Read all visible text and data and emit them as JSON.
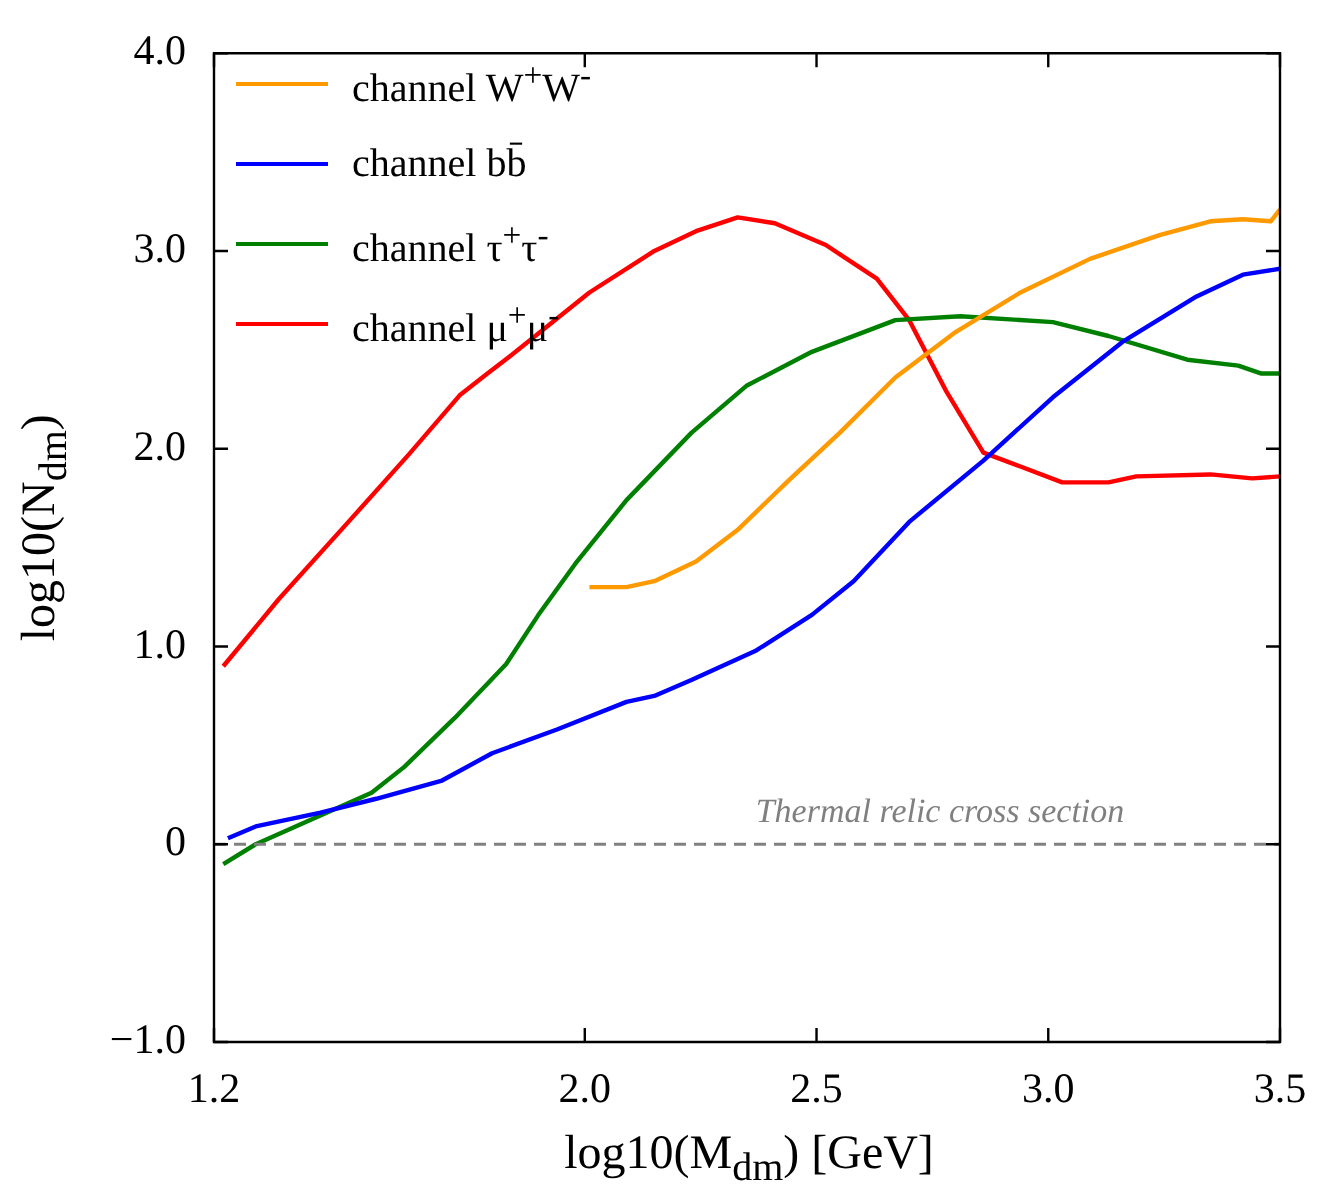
{
  "chart_data": {
    "type": "line",
    "xlabel": "log10(M$_{dm}$) [GeV]",
    "ylabel": "log10(N$_{dm}$)",
    "xlim": [
      1.2,
      3.5
    ],
    "xticks": [
      1.2,
      {
        "value": 2,
        "label": "2.0"
      },
      2.5,
      {
        "value": 3,
        "label": "3.0"
      },
      3.5
    ],
    "ylim": [
      -1,
      4
    ],
    "yticks": [
      {
        "value": -1,
        "label": "−1.0"
      },
      0,
      {
        "value": 1,
        "label": "1.0"
      },
      {
        "value": 2,
        "label": "2.0"
      },
      {
        "value": 3,
        "label": "3.0"
      },
      {
        "value": 4,
        "label": "4.0"
      }
    ],
    "legend": "top left",
    "marker": "none",
    "line_style": "solid",
    "ref_lines": [
      {
        "axis": "y",
        "value": 0,
        "label": "Thermal relic cross section",
        "color": "#808080",
        "line_style": "dashed"
      }
    ],
    "series": [
      {
        "name": "channel W$^{+}$W$^{-}$",
        "color": "#ff9900",
        "x": [
          2.01,
          2.09,
          2.15,
          2.24,
          2.33,
          2.44,
          2.55,
          2.67,
          2.8,
          2.94,
          3.09,
          3.24,
          3.35,
          3.42,
          3.48,
          3.5
        ],
        "values": [
          1.3,
          1.3,
          1.33,
          1.43,
          1.59,
          1.84,
          2.08,
          2.36,
          2.59,
          2.79,
          2.96,
          3.08,
          3.15,
          3.16,
          3.15,
          3.21
        ]
      },
      {
        "name": "channel bb̄",
        "color": "#0000ff",
        "x": [
          1.23,
          1.29,
          1.43,
          1.55,
          1.69,
          1.8,
          1.94,
          2.09,
          2.15,
          2.23,
          2.37,
          2.49,
          2.58,
          2.7,
          2.86,
          3.01,
          3.16,
          3.32,
          3.42,
          3.5
        ],
        "values": [
          0.03,
          0.09,
          0.16,
          0.23,
          0.32,
          0.46,
          0.58,
          0.72,
          0.75,
          0.83,
          0.98,
          1.16,
          1.33,
          1.63,
          1.94,
          2.26,
          2.54,
          2.77,
          2.88,
          2.91
        ]
      },
      {
        "name": "channel τ$^{+}$τ$^{-}$",
        "color": "#008000",
        "x": [
          1.22,
          1.29,
          1.54,
          1.61,
          1.72,
          1.83,
          1.9,
          1.98,
          2.09,
          2.23,
          2.35,
          2.49,
          2.67,
          2.81,
          3.01,
          3.13,
          3.3,
          3.41,
          3.46,
          3.5
        ],
        "values": [
          -0.1,
          0,
          0.26,
          0.39,
          0.64,
          0.91,
          1.16,
          1.42,
          1.74,
          2.08,
          2.32,
          2.49,
          2.65,
          2.67,
          2.64,
          2.57,
          2.45,
          2.42,
          2.38,
          2.38
        ]
      },
      {
        "name": "channel μ$^{+}$μ$^{-}$",
        "color": "#ff0000",
        "x": [
          1.22,
          1.34,
          1.49,
          1.62,
          1.73,
          1.79,
          1.84,
          2.01,
          2.15,
          2.24,
          2.33,
          2.41,
          2.52,
          2.63,
          2.7,
          2.78,
          2.86,
          2.94,
          3.03,
          3.13,
          3.19,
          3.35,
          3.44,
          3.5
        ],
        "values": [
          0.9,
          1.24,
          1.63,
          1.97,
          2.27,
          2.38,
          2.47,
          2.79,
          3.0,
          3.1,
          3.17,
          3.14,
          3.03,
          2.86,
          2.65,
          2.29,
          1.98,
          1.91,
          1.83,
          1.83,
          1.86,
          1.87,
          1.85,
          1.86
        ]
      }
    ]
  }
}
